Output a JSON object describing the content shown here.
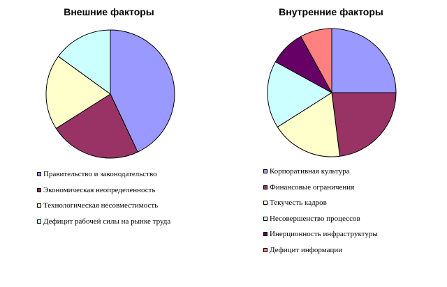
{
  "chart_data": [
    {
      "type": "pie",
      "title": "Внешние  факторы",
      "categories": [
        "Правительство и законодательство",
        "Экономическая неопределенность",
        "Технологическая несовместимость",
        "Дефицит рабочей силы на рынке труда"
      ],
      "values": [
        43,
        23,
        19,
        15
      ],
      "colors": [
        "#9999FF",
        "#993366",
        "#FFFFCC",
        "#CCFFFF"
      ],
      "legend": "bottom"
    },
    {
      "type": "pie",
      "title": "Внутренние факторы",
      "categories": [
        "Корпоративная культура",
        "Финансовые ограничения",
        "Текучесть кадров",
        "Несовершенство процессов",
        "Инерционность инфраструктуры",
        "Дефицит информации"
      ],
      "values": [
        25,
        23,
        18,
        17,
        9,
        8
      ],
      "colors": [
        "#9999FF",
        "#993366",
        "#FFFFCC",
        "#CCFFFF",
        "#660066",
        "#FF8080"
      ],
      "legend": "bottom"
    }
  ]
}
